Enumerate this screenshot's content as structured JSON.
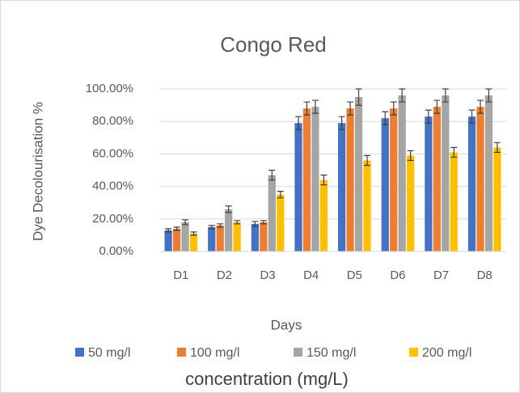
{
  "chart_data": {
    "type": "bar",
    "title": "Congo Red",
    "x_label": "Days",
    "y_label": "Dye Decolourisation %",
    "legend_title": "concentration (mg/L)",
    "categories": [
      "D1",
      "D2",
      "D3",
      "D4",
      "D5",
      "D6",
      "D7",
      "D8"
    ],
    "series": [
      {
        "name": "50 mg/l",
        "color": "#4472c4",
        "values": [
          13,
          15,
          17,
          79,
          79,
          82,
          83,
          83
        ],
        "errors": [
          1,
          1,
          1.5,
          4,
          4,
          4,
          4,
          4
        ]
      },
      {
        "name": "100 mg/l",
        "color": "#ed7d31",
        "values": [
          14,
          16,
          18,
          88,
          88,
          88,
          89,
          89
        ],
        "errors": [
          1,
          1,
          1,
          4,
          4,
          4,
          4,
          4
        ]
      },
      {
        "name": "150 mg/l",
        "color": "#a5a5a5",
        "values": [
          18,
          26,
          47,
          89,
          95,
          96,
          96,
          96
        ],
        "errors": [
          1.5,
          2,
          3,
          4,
          5,
          4,
          4,
          4
        ]
      },
      {
        "name": "200 mg/l",
        "color": "#ffc000",
        "values": [
          11,
          18,
          35,
          44,
          56,
          59,
          61,
          64
        ],
        "errors": [
          1,
          1,
          2,
          3,
          3,
          3,
          3,
          3
        ]
      }
    ],
    "ylim": [
      0,
      100
    ],
    "yticks": [
      {
        "value": 0,
        "label": "0.00%"
      },
      {
        "value": 20,
        "label": "20.00%"
      },
      {
        "value": 40,
        "label": "40.00%"
      },
      {
        "value": 60,
        "label": "60.00%"
      },
      {
        "value": 80,
        "label": "80.00%"
      },
      {
        "value": 100,
        "label": "100.00%"
      }
    ],
    "grid": true,
    "legend": "bottom"
  }
}
